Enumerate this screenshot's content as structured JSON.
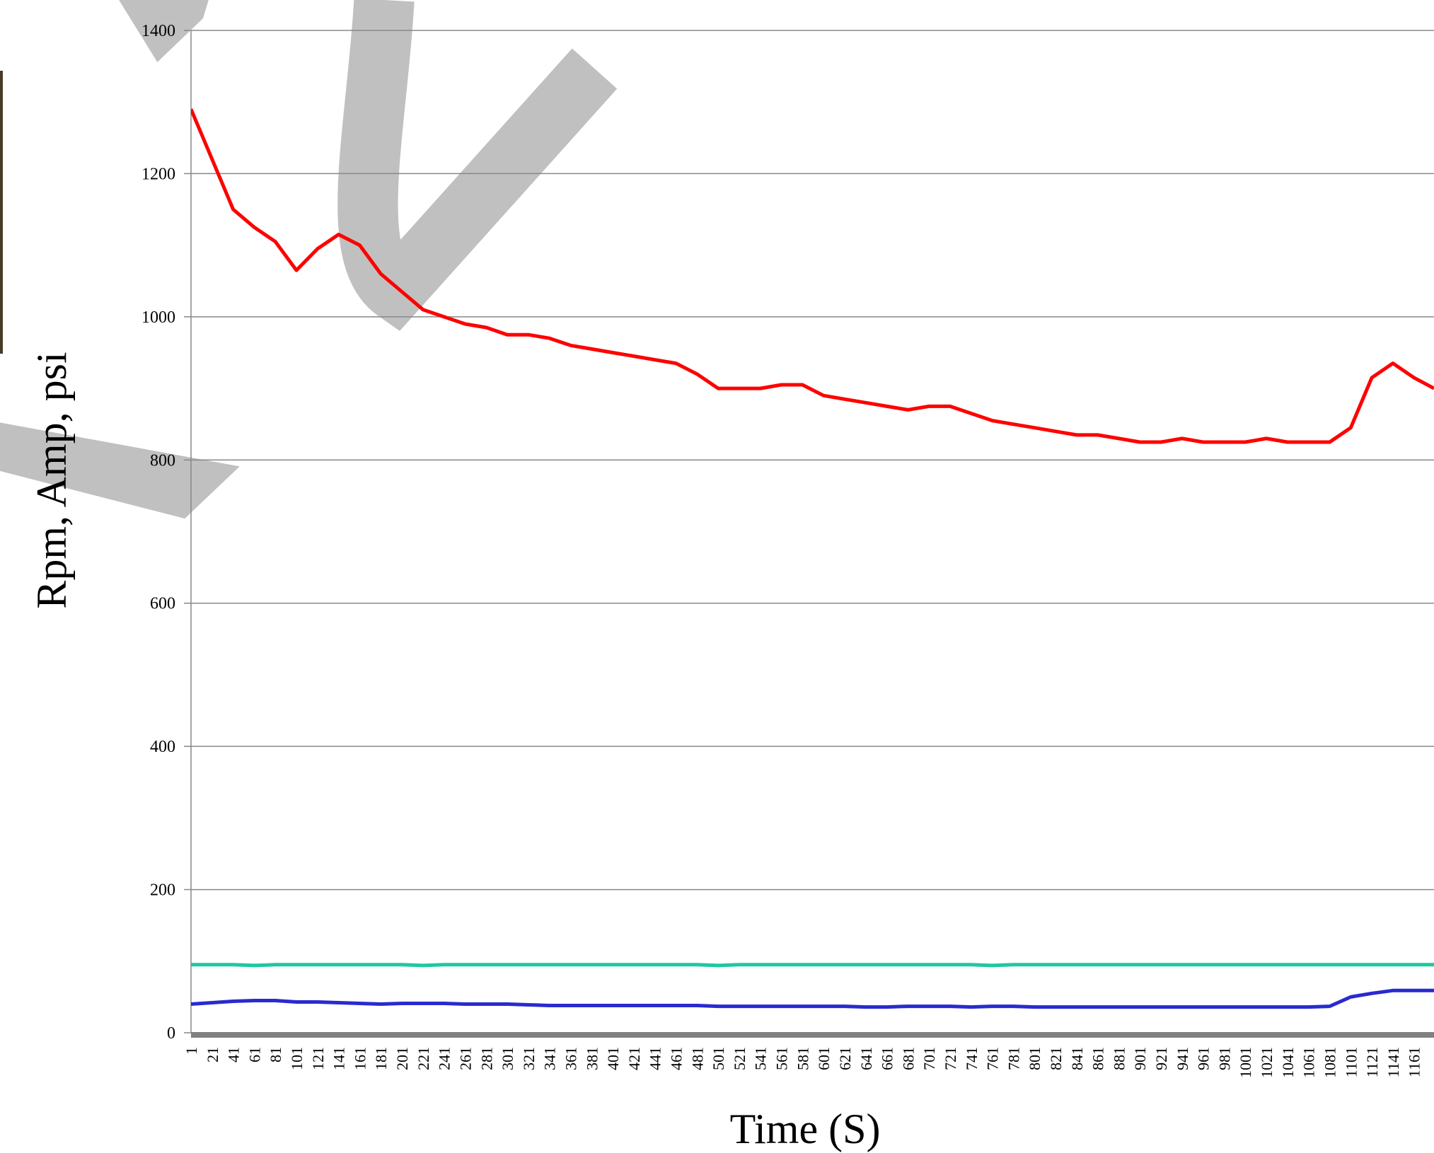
{
  "chart_data": {
    "type": "line",
    "ylabel": "Rpm, Amp, psi",
    "xlabel": "Time (S)",
    "x": [
      1,
      21,
      41,
      61,
      81,
      101,
      121,
      141,
      161,
      181,
      201,
      221,
      241,
      261,
      281,
      301,
      321,
      341,
      361,
      381,
      401,
      421,
      441,
      461,
      481,
      501,
      521,
      541,
      561,
      581,
      601,
      621,
      641,
      661,
      681,
      701,
      721,
      741,
      761,
      781,
      801,
      821,
      841,
      861,
      881,
      901,
      921,
      941,
      961,
      981,
      1001,
      1021,
      1041,
      1061,
      1081,
      1101,
      1121,
      1141,
      1161,
      1180
    ],
    "series": [
      {
        "color": "#ff0000",
        "values": [
          1290,
          1220,
          1150,
          1125,
          1105,
          1065,
          1095,
          1115,
          1100,
          1060,
          1035,
          1010,
          1000,
          990,
          985,
          975,
          975,
          970,
          960,
          955,
          950,
          945,
          940,
          935,
          920,
          900,
          900,
          900,
          905,
          905,
          890,
          885,
          880,
          875,
          870,
          875,
          875,
          865,
          855,
          850,
          845,
          840,
          835,
          835,
          830,
          825,
          825,
          830,
          825,
          825,
          825,
          830,
          825,
          825,
          825,
          845,
          915,
          935,
          915,
          900
        ]
      },
      {
        "color": "#1ec8a0",
        "values": [
          95,
          95,
          95,
          94,
          95,
          95,
          95,
          95,
          95,
          95,
          95,
          94,
          95,
          95,
          95,
          95,
          95,
          95,
          95,
          95,
          95,
          95,
          95,
          95,
          95,
          94,
          95,
          95,
          95,
          95,
          95,
          95,
          95,
          95,
          95,
          95,
          95,
          95,
          94,
          95,
          95,
          95,
          95,
          95,
          95,
          95,
          95,
          95,
          95,
          95,
          95,
          95,
          95,
          95,
          95,
          95,
          95,
          95,
          95,
          95
        ]
      },
      {
        "color": "#2a2ad0",
        "values": [
          40,
          42,
          44,
          45,
          45,
          43,
          43,
          42,
          41,
          40,
          41,
          41,
          41,
          40,
          40,
          40,
          39,
          38,
          38,
          38,
          38,
          38,
          38,
          38,
          38,
          37,
          37,
          37,
          37,
          37,
          37,
          37,
          36,
          36,
          37,
          37,
          37,
          36,
          37,
          37,
          36,
          36,
          36,
          36,
          36,
          36,
          36,
          36,
          36,
          36,
          36,
          36,
          36,
          36,
          37,
          50,
          55,
          59,
          59,
          59
        ]
      }
    ],
    "xlim": [
      1,
      1180
    ],
    "xticks": [
      1,
      21,
      41,
      61,
      81,
      101,
      121,
      141,
      161,
      181,
      201,
      221,
      241,
      261,
      281,
      301,
      321,
      341,
      361,
      381,
      401,
      421,
      441,
      461,
      481,
      501,
      521,
      541,
      561,
      581,
      601,
      621,
      641,
      661,
      681,
      701,
      721,
      741,
      761,
      781,
      801,
      821,
      841,
      861,
      881,
      901,
      921,
      941,
      961,
      981,
      1001,
      1021,
      1041,
      1061,
      1081,
      1101,
      1121,
      1141,
      1161
    ],
    "ylim": [
      0,
      1400
    ],
    "yticks": [
      0,
      200,
      400,
      600,
      800,
      1000,
      1200,
      1400
    ],
    "grid": true
  }
}
